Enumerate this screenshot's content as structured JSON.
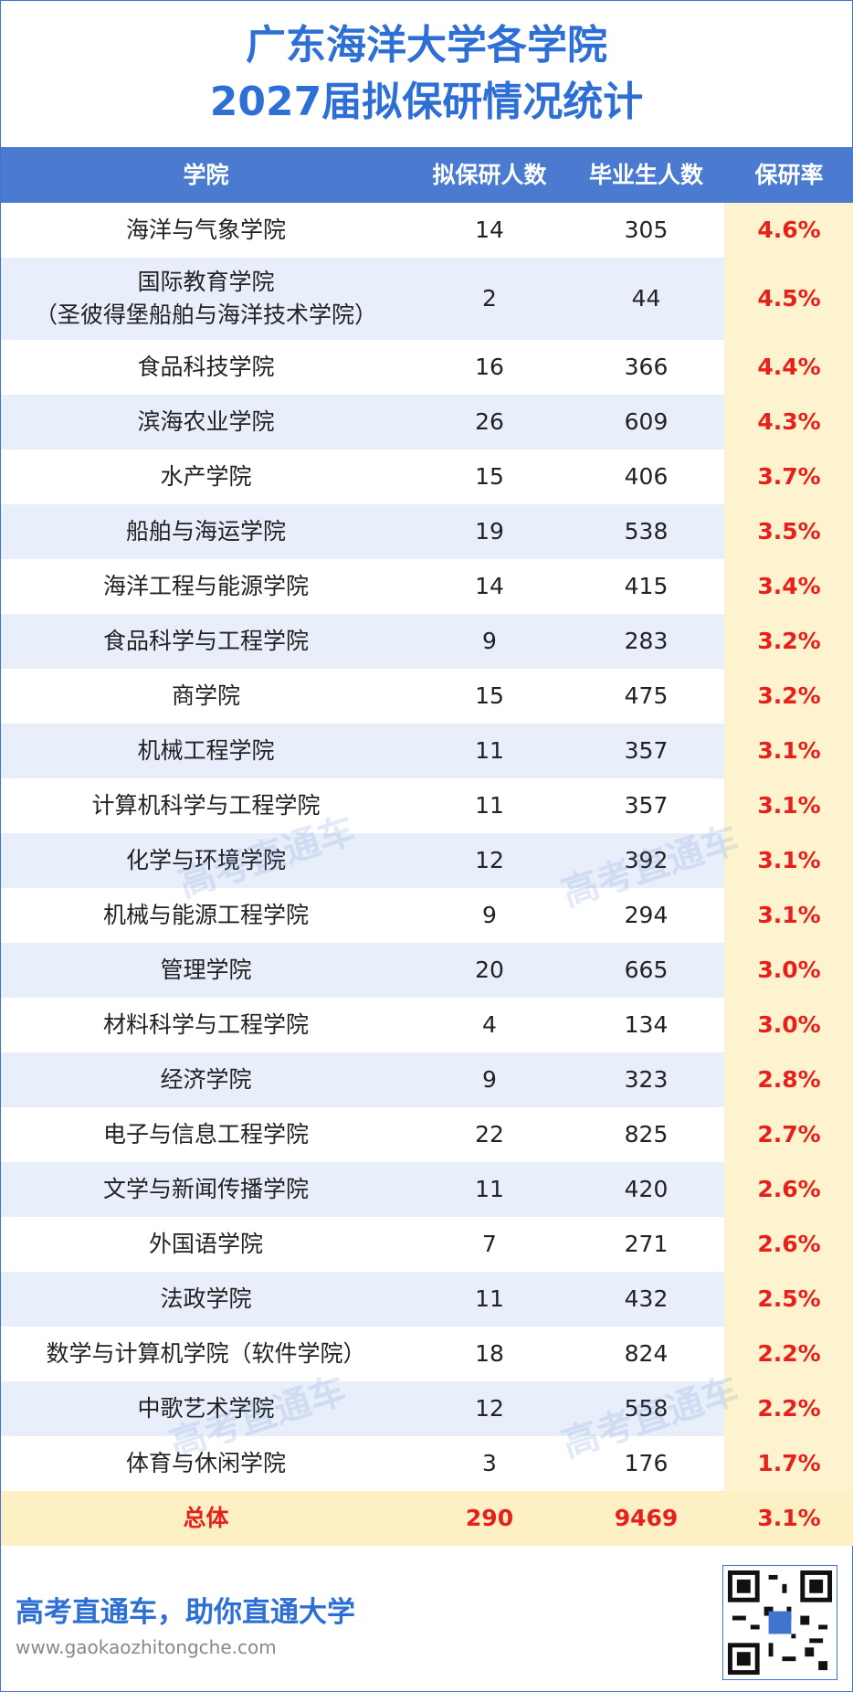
{
  "title": {
    "line1": "广东海洋大学各学院",
    "line2": "2027届拟保研情况统计"
  },
  "table": {
    "header": [
      "学院",
      "拟保研人数",
      "毕业生人数",
      "保研率"
    ],
    "rows": [
      {
        "college": "海洋与气象学院",
        "recommended": 14,
        "graduates": 305,
        "rate": "4.6%"
      },
      {
        "college": [
          "国际教育学院",
          "（圣彼得堡船舶与海洋技术学院）"
        ],
        "recommended": 2,
        "graduates": 44,
        "rate": "4.5%"
      },
      {
        "college": "食品科技学院",
        "recommended": 16,
        "graduates": 366,
        "rate": "4.4%"
      },
      {
        "college": "滨海农业学院",
        "recommended": 26,
        "graduates": 609,
        "rate": "4.3%"
      },
      {
        "college": "水产学院",
        "recommended": 15,
        "graduates": 406,
        "rate": "3.7%"
      },
      {
        "college": "船舶与海运学院",
        "recommended": 19,
        "graduates": 538,
        "rate": "3.5%"
      },
      {
        "college": "海洋工程与能源学院",
        "recommended": 14,
        "graduates": 415,
        "rate": "3.4%"
      },
      {
        "college": "食品科学与工程学院",
        "recommended": 9,
        "graduates": 283,
        "rate": "3.2%"
      },
      {
        "college": "商学院",
        "recommended": 15,
        "graduates": 475,
        "rate": "3.2%"
      },
      {
        "college": "机械工程学院",
        "recommended": 11,
        "graduates": 357,
        "rate": "3.1%"
      },
      {
        "college": "计算机科学与工程学院",
        "recommended": 11,
        "graduates": 357,
        "rate": "3.1%"
      },
      {
        "college": "化学与环境学院",
        "recommended": 12,
        "graduates": 392,
        "rate": "3.1%"
      },
      {
        "college": "机械与能源工程学院",
        "recommended": 9,
        "graduates": 294,
        "rate": "3.1%"
      },
      {
        "college": "管理学院",
        "recommended": 20,
        "graduates": 665,
        "rate": "3.0%"
      },
      {
        "college": "材料科学与工程学院",
        "recommended": 4,
        "graduates": 134,
        "rate": "3.0%"
      },
      {
        "college": "经济学院",
        "recommended": 9,
        "graduates": 323,
        "rate": "2.8%"
      },
      {
        "college": "电子与信息工程学院",
        "recommended": 22,
        "graduates": 825,
        "rate": "2.7%"
      },
      {
        "college": "文学与新闻传播学院",
        "recommended": 11,
        "graduates": 420,
        "rate": "2.6%"
      },
      {
        "college": "外国语学院",
        "recommended": 7,
        "graduates": 271,
        "rate": "2.6%"
      },
      {
        "college": "法政学院",
        "recommended": 11,
        "graduates": 432,
        "rate": "2.5%"
      },
      {
        "college": "数学与计算机学院（软件学院）",
        "recommended": 18,
        "graduates": 824,
        "rate": "2.2%"
      },
      {
        "college": "中歌艺术学院",
        "recommended": 12,
        "graduates": 558,
        "rate": "2.2%"
      },
      {
        "college": "体育与休闲学院",
        "recommended": 3,
        "graduates": 176,
        "rate": "1.7%"
      }
    ],
    "total": {
      "college": "总体",
      "recommended": 290,
      "graduates": 9469,
      "rate": "3.1%"
    }
  },
  "watermark": "高考直通车",
  "footer": {
    "slogan": "高考直通车，助你直通大学",
    "url": "www.gaokaozhitongche.com"
  }
}
